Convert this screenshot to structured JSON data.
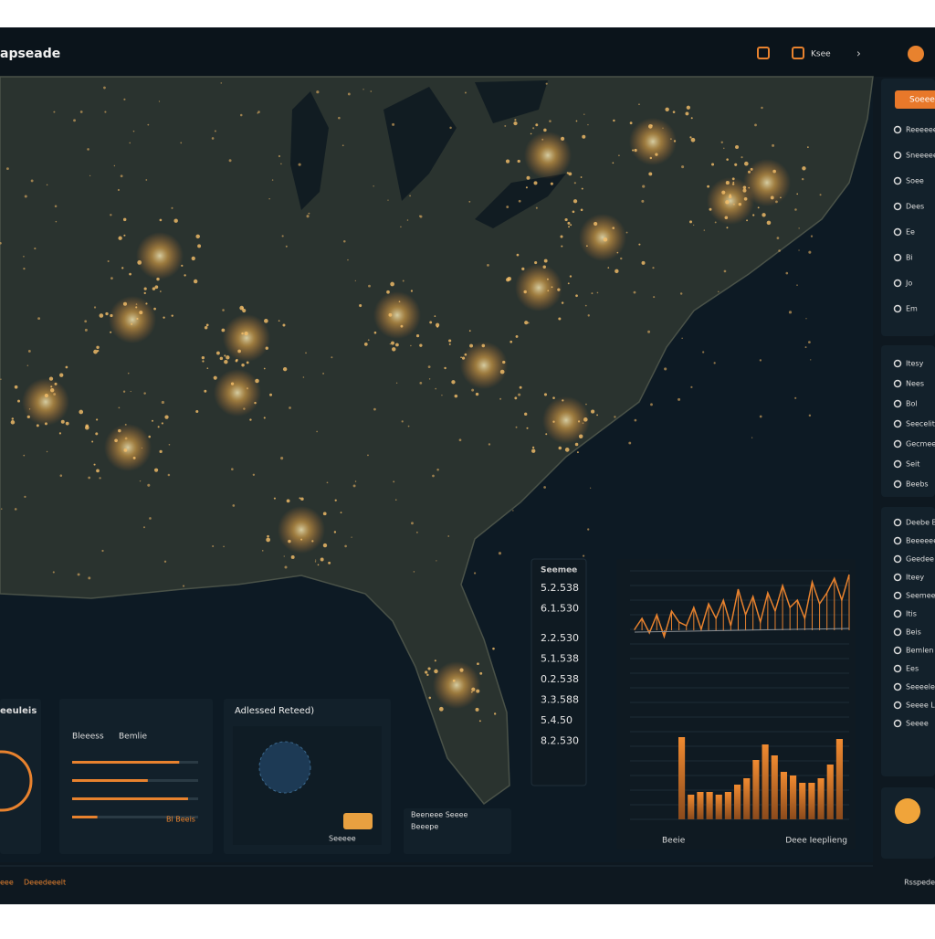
{
  "header": {
    "title": "apseade",
    "button": "Ksee"
  },
  "sidebar": {
    "button": "Soeee",
    "groups": [
      {
        "items": [
          "Reeeeee",
          "Sneeeee",
          "Soee",
          "Dees",
          "Ee",
          "Bi",
          "Jo",
          "Em"
        ]
      },
      {
        "items": [
          "Itesy",
          "Nees",
          "Bol",
          "Seecelit",
          "Gecmeee",
          "Seit",
          "Beebs"
        ]
      },
      {
        "items": [
          "Deebe Bell",
          "Beeeeee",
          "Geedee",
          "Iteey",
          "Seemee",
          "Itis",
          "Beis",
          "Bemlen",
          "Ees",
          "Seeeele",
          "Seeee Lee",
          "Seeee"
        ]
      }
    ]
  },
  "readout": {
    "title": "Seemee",
    "values": [
      "5.2.538",
      "6.1.530",
      "2.2.530",
      "5.1.538",
      "0.2.538",
      "3.3.588",
      "5.4.50",
      "8.2.530"
    ]
  },
  "panels": [
    {
      "title": "eeuleis"
    },
    {
      "title": "Bleeess",
      "subtitle": "Bemlie",
      "note": "Bl Beeis",
      "progress": [
        85,
        60,
        92,
        20
      ]
    },
    {
      "title": "Adlessed Reteed)",
      "caption": "Seeeee"
    },
    {
      "title": "Beeneee Seeee",
      "subtitle": "Beeepe"
    }
  ],
  "line_chart": {
    "color": "#e8822e",
    "values": [
      20,
      35,
      15,
      40,
      10,
      45,
      30,
      25,
      50,
      20,
      55,
      35,
      60,
      25,
      75,
      40,
      65,
      30,
      70,
      45,
      80,
      50,
      60,
      35,
      85,
      55,
      70,
      90,
      60,
      95
    ]
  },
  "bar_chart": {
    "color": "#e8822e",
    "values": [
      90,
      27,
      30,
      30,
      27,
      30,
      38,
      45,
      65,
      82,
      70,
      52,
      48,
      40,
      40,
      45,
      60,
      88
    ],
    "x_labels": [
      "Beeie",
      "Deee Ieeplieng"
    ]
  },
  "footer": {
    "left": [
      "eee",
      "Deeedeeelt"
    ],
    "right": "Rsspede"
  }
}
